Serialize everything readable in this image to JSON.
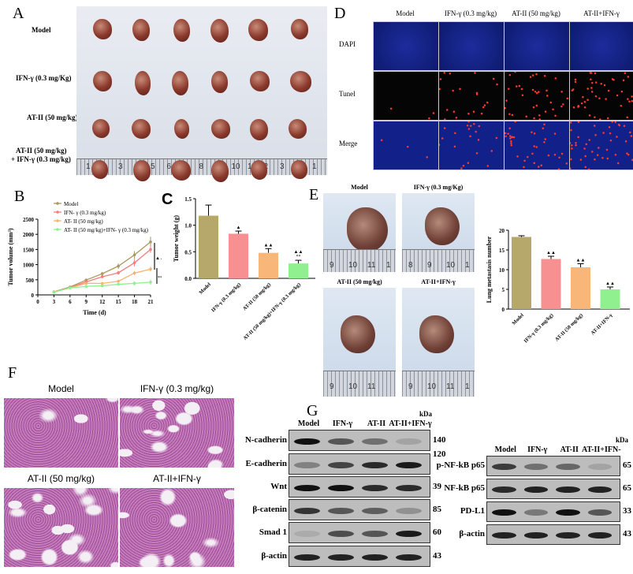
{
  "panels": {
    "A": "A",
    "B": "B",
    "C": "C",
    "D": "D",
    "E": "E",
    "F": "F",
    "G": "G"
  },
  "panelA": {
    "rows": [
      "Model",
      "IFN-γ (0.3 mg/Kg)",
      "AT-II (50 mg/kg)",
      "AT-II (50 mg/kg)",
      "+ IFN-γ (0.3 mg/kg)"
    ],
    "ruler": [
      "1",
      "2",
      "3",
      "4",
      "5",
      "6",
      "7",
      "8",
      "9",
      "10",
      "1",
      "2",
      "3",
      "4",
      "1"
    ]
  },
  "panelD": {
    "columns": [
      "Model",
      "IFN-γ (0.3 mg/kg)",
      "AT-II (50 mg/kg)",
      "AT-II+IFN-γ"
    ],
    "rows": [
      "DAPI",
      "Tunel",
      "Merge"
    ],
    "tunel_density": [
      0.05,
      0.35,
      0.6,
      0.75
    ]
  },
  "panelE": {
    "photos": [
      "Model",
      "IFN-γ (0.3 mg/Kg)",
      "AT-II (50 mg/kg)",
      "AT-II+IFN-γ"
    ],
    "ruler_top_left": [
      "9",
      "10",
      "11",
      "1"
    ],
    "ruler_top_right": [
      "8",
      "9",
      "10",
      "1"
    ],
    "ruler_bottom_left": [
      "9",
      "10",
      "11"
    ],
    "ruler_bottom_right": [
      "9",
      "10",
      "11",
      "1"
    ]
  },
  "panelF": {
    "titles": [
      "Model",
      "IFN-γ (0.3 mg/kg)",
      "AT-II (50 mg/kg)",
      "AT-II+IFN-γ"
    ]
  },
  "panelG": {
    "left": {
      "lanes": [
        "Model",
        "IFN-γ",
        "AT-II",
        "AT-II+IFN-γ"
      ],
      "kda_label": "kDa",
      "rows": [
        {
          "label": "N-cadherin",
          "kda": "140",
          "intensity": [
            1,
            0.6,
            0.45,
            0.15
          ]
        },
        {
          "label": "E-cadherin",
          "kda": "120",
          "intensity": [
            0.35,
            0.7,
            0.85,
            0.95
          ]
        },
        {
          "label": "Wnt",
          "kda": "39",
          "intensity": [
            1,
            1,
            0.85,
            0.85
          ]
        },
        {
          "label": "β-catenin",
          "kda": "85",
          "intensity": [
            0.8,
            0.6,
            0.55,
            0.25
          ]
        },
        {
          "label": "Smad 1",
          "kda": "60",
          "intensity": [
            0.1,
            0.65,
            0.6,
            0.95
          ]
        },
        {
          "label": "β-actin",
          "kda": "43",
          "intensity": [
            0.9,
            0.9,
            0.9,
            0.9
          ]
        }
      ]
    },
    "right": {
      "lanes": [
        "Model",
        "IFN-γ",
        "AT-II",
        "AT-II+IFN-γ"
      ],
      "kda_label": "kDa",
      "rows": [
        {
          "label": "p-NF-kB p65",
          "kda": "65",
          "intensity": [
            0.75,
            0.45,
            0.5,
            0.15
          ]
        },
        {
          "label": "NF-kB p65",
          "kda": "65",
          "intensity": [
            0.85,
            0.9,
            0.9,
            0.9
          ]
        },
        {
          "label": "PD-L1",
          "kda": "33",
          "intensity": [
            1,
            0.4,
            1,
            0.6
          ]
        },
        {
          "label": "β-actin",
          "kda": "43",
          "intensity": [
            0.9,
            0.9,
            0.9,
            0.9
          ]
        }
      ]
    }
  },
  "chart_data": [
    {
      "type": "line",
      "xlabel": "Time (d)",
      "ylabel": "Tumor volume (mm³)",
      "xlim": [
        0,
        21
      ],
      "ylim": [
        0,
        2500
      ],
      "xticks": [
        0,
        3,
        6,
        9,
        12,
        15,
        18,
        21
      ],
      "yticks": [
        0,
        500,
        1000,
        1500,
        2000,
        2500
      ],
      "legend": "top",
      "x": [
        3,
        6,
        9,
        12,
        15,
        18,
        21
      ],
      "series": [
        {
          "name": "Model",
          "color": "#a99a5c",
          "values": [
            100,
            260,
            490,
            700,
            950,
            1320,
            1750
          ],
          "err": [
            20,
            30,
            30,
            60,
            90,
            130,
            170
          ]
        },
        {
          "name": "IFN- γ (0.3 mg/kg)",
          "color": "#f07f7f",
          "values": [
            100,
            240,
            430,
            600,
            730,
            1060,
            1500
          ],
          "err": [
            20,
            25,
            30,
            50,
            60,
            120,
            110
          ]
        },
        {
          "name": "AT- II (50 mg/kg)",
          "color": "#f8b46a",
          "values": [
            90,
            230,
            380,
            380,
            450,
            720,
            850
          ],
          "err": [
            15,
            25,
            30,
            30,
            50,
            70,
            80
          ]
        },
        {
          "name": "AT- II (50 mg/kg)+IFN- γ (0.3 mg/kg)",
          "color": "#8ef08e",
          "values": [
            90,
            230,
            280,
            300,
            350,
            380,
            420
          ],
          "err": [
            15,
            20,
            30,
            30,
            40,
            70,
            80
          ]
        }
      ],
      "annotations": [
        "▲▲",
        "**"
      ]
    },
    {
      "type": "bar",
      "ylabel": "Tumor weight (g)",
      "ylim": [
        0,
        1.5
      ],
      "yticks": [
        "0.0",
        "0.5",
        "1.0",
        "1.5"
      ],
      "categories": [
        "Model",
        "IFN-γ  (0.3 mg/kg)",
        "AT-II (50 mg/kg)",
        "AT-II (50 mg/kg)+IFN-γ  (0.3 mg/kg)"
      ],
      "values": [
        1.18,
        0.84,
        0.48,
        0.28
      ],
      "err": [
        0.2,
        0.05,
        0.08,
        0.06
      ],
      "colors": [
        "#b5a86a",
        "#f79191",
        "#f9b679",
        "#90f090"
      ],
      "annotations": [
        "",
        "▲",
        "▲▲",
        "▲▲\n**"
      ]
    },
    {
      "type": "bar",
      "ylabel": "Lung metastasis number",
      "ylim": [
        0,
        20
      ],
      "yticks": [
        "0",
        "5",
        "10",
        "15",
        "20"
      ],
      "categories": [
        "Model",
        "IFN-γ (0.3 mg/kg)",
        "AT-II (50 mg/kg)",
        "AT-II+IFN-γ"
      ],
      "values": [
        18.3,
        12.7,
        10.6,
        5.0
      ],
      "err": [
        0.3,
        0.7,
        0.9,
        0.6
      ],
      "colors": [
        "#b5a86a",
        "#f79191",
        "#f9b679",
        "#90f090"
      ],
      "annotations": [
        "",
        "▲▲",
        "▲▲",
        "▲▲"
      ]
    }
  ]
}
